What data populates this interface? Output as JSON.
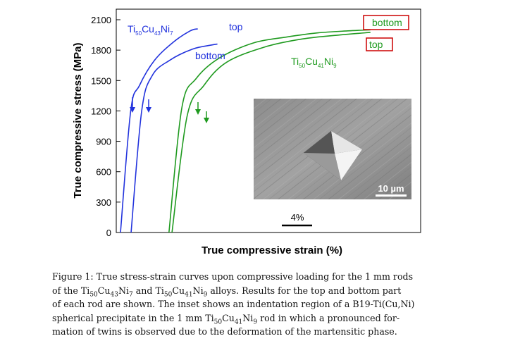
{
  "figure": {
    "ylabel": "True compressive stress (MPa)",
    "xlabel": "True compressive strain (%)",
    "scale_bar_label": "4%",
    "inset_scale_label": "10 µm",
    "labels": {
      "alloy1": {
        "base": "Ti",
        "s1": "50",
        "m1": "Cu",
        "s2": "43",
        "m2": "Ni",
        "s3": "7"
      },
      "alloy2": {
        "base": "Ti",
        "s1": "50",
        "m1": "Cu",
        "s2": "41",
        "m2": "Ni",
        "s3": "9"
      },
      "blue_top": "top",
      "blue_bottom": "bottom",
      "green_top": "top",
      "green_bottom": "bottom"
    },
    "colors": {
      "blue": "#2233dd",
      "green": "#1f9a1f",
      "box": "#cc0000",
      "axis": "#000000"
    }
  },
  "chart_data": {
    "type": "line",
    "ylabel": "True compressive stress (MPa)",
    "xlabel": "True compressive strain (%)",
    "ylim": [
      0,
      2100
    ],
    "yticks": [
      0,
      300,
      600,
      900,
      1200,
      1500,
      1800,
      2100
    ],
    "series": [
      {
        "name": "Ti50Cu43Ni7 top",
        "color": "blue",
        "points": [
          [
            0,
            0
          ],
          [
            1.35,
            1200
          ],
          [
            2.5,
            1450
          ],
          [
            4.5,
            1700
          ],
          [
            7,
            1880
          ],
          [
            9.2,
            1990
          ],
          [
            10.2,
            2010
          ]
        ]
      },
      {
        "name": "Ti50Cu43Ni7 bottom",
        "color": "blue",
        "points": [
          [
            1.4,
            0
          ],
          [
            2.8,
            1200
          ],
          [
            4.2,
            1550
          ],
          [
            6.5,
            1700
          ],
          [
            9.5,
            1810
          ],
          [
            12,
            1850
          ],
          [
            12.8,
            1860
          ]
        ]
      },
      {
        "name": "Ti50Cu41Ni9 bottom",
        "color": "green",
        "points": [
          [
            6.4,
            0
          ],
          [
            8.1,
            1230
          ],
          [
            10,
            1520
          ],
          [
            13,
            1720
          ],
          [
            17.5,
            1870
          ],
          [
            22,
            1930
          ],
          [
            26,
            1970
          ],
          [
            30,
            1990
          ],
          [
            33,
            2000
          ]
        ]
      },
      {
        "name": "Ti50Cu41Ni9 top",
        "color": "green",
        "points": [
          [
            6.8,
            0
          ],
          [
            8.8,
            1150
          ],
          [
            11,
            1450
          ],
          [
            14,
            1680
          ],
          [
            19,
            1830
          ],
          [
            24,
            1910
          ],
          [
            29,
            1950
          ],
          [
            33,
            1975
          ]
        ]
      }
    ],
    "annotations": [
      "top",
      "bottom",
      "top",
      "bottom",
      "4%"
    ]
  },
  "caption": {
    "line1": "Figure 1: True stress-strain curves upon compressive loading for the 1 mm rods",
    "line2_a": "of the Ti",
    "line2_s1": "50",
    "line2_b": "Cu",
    "line2_s2": "43",
    "line2_c": "Ni",
    "line2_s3": "7",
    "line2_d": " and Ti",
    "line2_s4": "50",
    "line2_e": "Cu",
    "line2_s5": "41",
    "line2_f": "Ni",
    "line2_s6": "9",
    "line2_g": " alloys. Results for the top and bottom part",
    "line3": "of each rod are shown. The inset shows an indentation region of a B19-Ti(Cu,Ni)",
    "line4_a": "spherical precipitate in the 1 mm Ti",
    "line4_s1": "50",
    "line4_b": "Cu",
    "line4_s2": "41",
    "line4_c": "Ni",
    "line4_s3": "9",
    "line4_d": " rod in which a pronounced for-",
    "line5": "mation of twins is observed due to the deformation of the martensitic phase."
  }
}
